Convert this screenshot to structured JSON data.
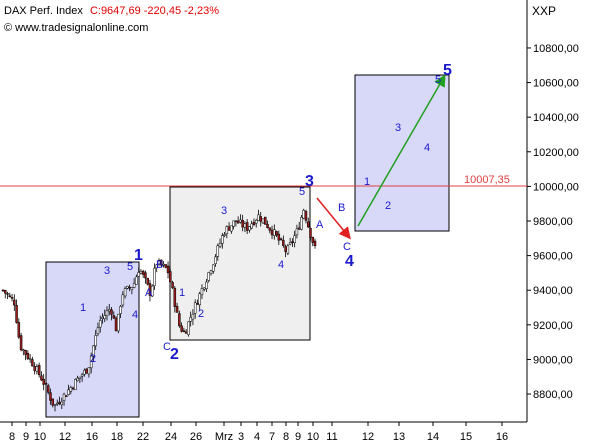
{
  "header": {
    "instrument": "DAX Perf. Index",
    "quote": "C:9647,69 -220,45 -2,23%",
    "source": "© www.tradesignalonline.com",
    "symbol": "XXP"
  },
  "colors": {
    "text_quote": "#e00000",
    "wave_label": "#1a1acc",
    "candle_up": "#ffffff",
    "candle_down": "#9b1b1b",
    "box_blue": "#d8d8f8",
    "box_gray": "#efefef",
    "level_line": "#e04040",
    "arrow_red": "#e02020",
    "arrow_green": "#20a020"
  },
  "chart_data": {
    "type": "candlestick",
    "title": "DAX Perf. Index",
    "ylim": [
      8650,
      11000
    ],
    "yticks": [
      8800,
      9000,
      9200,
      9400,
      9600,
      9800,
      10000,
      10200,
      10400,
      10600,
      10800
    ],
    "ytick_labels": [
      "8800,00",
      "9000,00",
      "9200,00",
      "9400,00",
      "9600,00",
      "9800,00",
      "10000,00",
      "10200,00",
      "10400,00",
      "10600,00",
      "10800,00"
    ],
    "xtick_labels": [
      "8",
      "9",
      "10",
      "12",
      "16",
      "18",
      "22",
      "24",
      "26",
      "Mrz",
      "3",
      "4",
      "7",
      "8",
      "9",
      "10",
      "11",
      "12",
      "13",
      "14",
      "15",
      "16"
    ],
    "horizontal_level": {
      "value": 10007.35,
      "label": "10007,35"
    },
    "last_close": 9647.69,
    "change": -220.45,
    "change_pct": -2.23,
    "price_path": [
      [
        0,
        9400
      ],
      [
        2,
        9330
      ],
      [
        3,
        9080
      ],
      [
        5,
        8990
      ],
      [
        7,
        8880
      ],
      [
        9,
        8730
      ],
      [
        11,
        8800
      ],
      [
        13,
        8880
      ],
      [
        15,
        8950
      ],
      [
        17,
        9220
      ],
      [
        19,
        9300
      ],
      [
        20,
        9170
      ],
      [
        21,
        9380
      ],
      [
        23,
        9430
      ],
      [
        24,
        9530
      ],
      [
        25,
        9460
      ],
      [
        26,
        9380
      ],
      [
        27,
        9560
      ],
      [
        28,
        9540
      ],
      [
        29,
        9520
      ],
      [
        30,
        9380
      ],
      [
        31,
        9200
      ],
      [
        32,
        9150
      ],
      [
        33,
        9240
      ],
      [
        35,
        9400
      ],
      [
        37,
        9560
      ],
      [
        39,
        9740
      ],
      [
        41,
        9800
      ],
      [
        43,
        9760
      ],
      [
        45,
        9830
      ],
      [
        46,
        9800
      ],
      [
        48,
        9720
      ],
      [
        50,
        9620
      ],
      [
        52,
        9750
      ],
      [
        53,
        9870
      ],
      [
        54,
        9750
      ],
      [
        55,
        9640
      ]
    ],
    "wave_labels_major": [
      "1",
      "2",
      "3",
      "4",
      "5"
    ],
    "wave_labels_minor": [
      "1",
      "2",
      "3",
      "4",
      "5",
      "A",
      "B",
      "C",
      "1",
      "2",
      "3",
      "4",
      "5",
      "A",
      "B",
      "C",
      "1",
      "2",
      "3",
      "4",
      "5"
    ]
  }
}
